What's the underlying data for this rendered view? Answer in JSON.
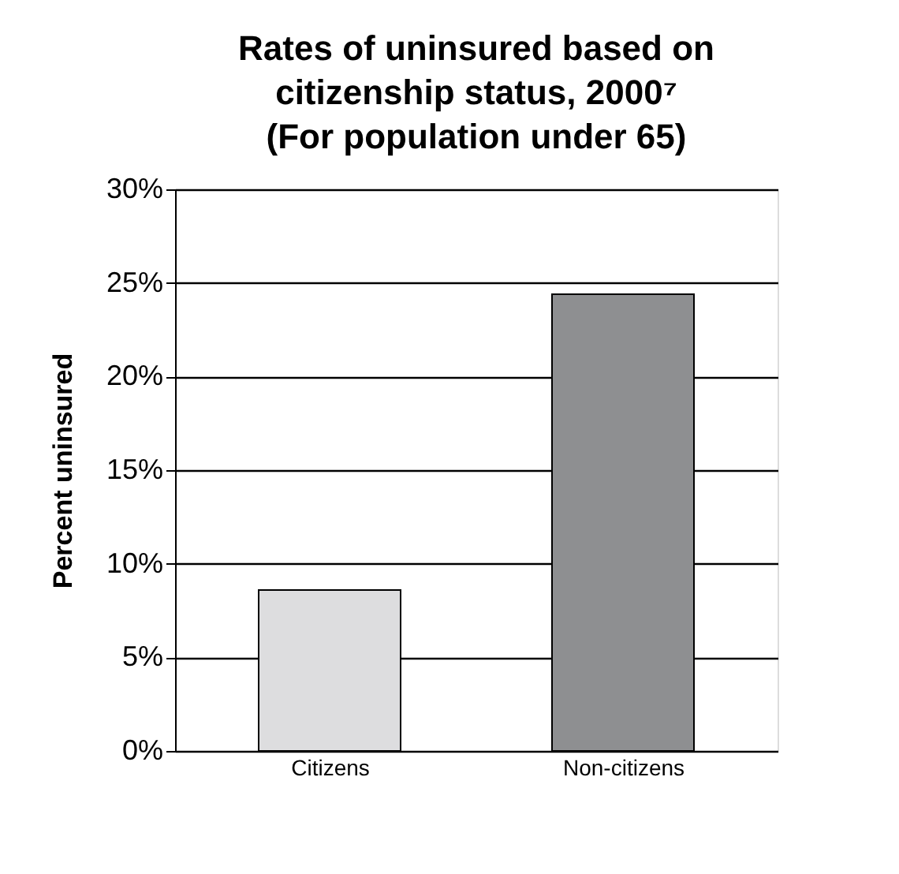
{
  "chart_data": {
    "type": "bar",
    "title": [
      "Rates of uninsured based on",
      "citizenship status, 2000⁷",
      "(For population under 65)"
    ],
    "ylabel": "Percent uninsured",
    "categories": [
      "Citizens",
      "Non-citizens"
    ],
    "colors": [
      "#dddddf",
      "#8e8f91"
    ],
    "values": [
      8.6,
      24.4
    ],
    "ylim": [
      0,
      30
    ],
    "yticks": [
      {
        "value": 0,
        "label": "0%"
      },
      {
        "value": 5,
        "label": "5%"
      },
      {
        "value": 10,
        "label": "10%"
      },
      {
        "value": 15,
        "label": "15%"
      },
      {
        "value": 20,
        "label": "20%"
      },
      {
        "value": 25,
        "label": "25%"
      },
      {
        "value": 30,
        "label": "30%"
      }
    ],
    "grid": "y"
  }
}
